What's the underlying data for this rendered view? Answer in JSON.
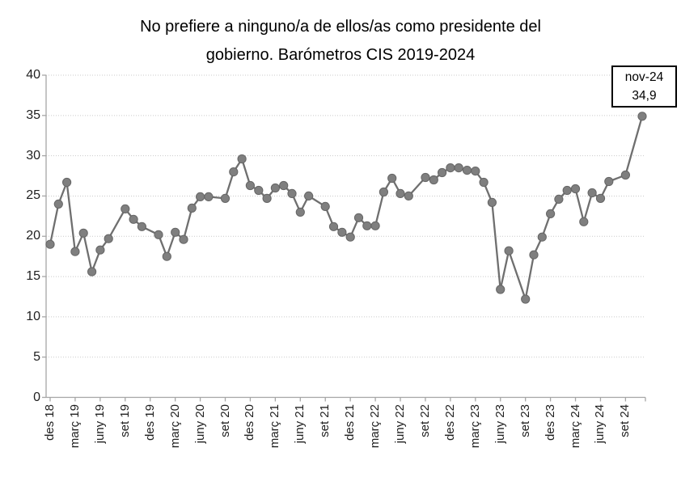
{
  "title": {
    "line1": "No prefiere a ninguno/a de ellos/as como presidente del",
    "line2": "gobierno. Barómetros CIS 2019-2024"
  },
  "annotation": {
    "label": "nov-24",
    "value": "34,9"
  },
  "chart_data": {
    "type": "line",
    "title": "No prefiere a ninguno/a de ellos/as como presidente del gobierno. Barómetros CIS 2019-2024",
    "xlabel": "",
    "ylabel": "",
    "ylim": [
      0,
      40
    ],
    "y_ticks": [
      0,
      5,
      10,
      15,
      20,
      25,
      30,
      35,
      40
    ],
    "grid": "horizontal-dotted",
    "legend": "none",
    "x_unit": "m = months after Dec 2018 (date axis; no survey in Augusts, Dec 2019, Oct 2024)",
    "x_ticks": [
      {
        "m": 0,
        "label": "des 18"
      },
      {
        "m": 3,
        "label": "març 19"
      },
      {
        "m": 6,
        "label": "juny 19"
      },
      {
        "m": 9,
        "label": "set 19"
      },
      {
        "m": 12,
        "label": "des 19"
      },
      {
        "m": 15,
        "label": "març 20"
      },
      {
        "m": 18,
        "label": "juny 20"
      },
      {
        "m": 21,
        "label": "set 20"
      },
      {
        "m": 24,
        "label": "des 20"
      },
      {
        "m": 27,
        "label": "març 21"
      },
      {
        "m": 30,
        "label": "juny 21"
      },
      {
        "m": 33,
        "label": "set 21"
      },
      {
        "m": 36,
        "label": "des 21"
      },
      {
        "m": 39,
        "label": "març 22"
      },
      {
        "m": 42,
        "label": "juny 22"
      },
      {
        "m": 45,
        "label": "set 22"
      },
      {
        "m": 48,
        "label": "des 22"
      },
      {
        "m": 51,
        "label": "març 23"
      },
      {
        "m": 54,
        "label": "juny 23"
      },
      {
        "m": 57,
        "label": "set 23"
      },
      {
        "m": 60,
        "label": "des 23"
      },
      {
        "m": 63,
        "label": "març 24"
      },
      {
        "m": 66,
        "label": "juny 24"
      },
      {
        "m": 69,
        "label": "set 24"
      }
    ],
    "series": [
      {
        "name": "No prefiere a ninguno/a de ellos/as",
        "points": [
          [
            0,
            19.0
          ],
          [
            1,
            24.0
          ],
          [
            2,
            26.7
          ],
          [
            3,
            18.1
          ],
          [
            4,
            20.4
          ],
          [
            5,
            15.6
          ],
          [
            6,
            18.3
          ],
          [
            7,
            19.7
          ],
          [
            9,
            23.4
          ],
          [
            10,
            22.1
          ],
          [
            11,
            21.2
          ],
          [
            13,
            20.2
          ],
          [
            14,
            17.5
          ],
          [
            15,
            20.5
          ],
          [
            16,
            19.6
          ],
          [
            17,
            23.5
          ],
          [
            18,
            24.9
          ],
          [
            19,
            24.9
          ],
          [
            21,
            24.7
          ],
          [
            22,
            28.0
          ],
          [
            23,
            29.6
          ],
          [
            24,
            26.3
          ],
          [
            25,
            25.7
          ],
          [
            26,
            24.7
          ],
          [
            27,
            26.0
          ],
          [
            28,
            26.3
          ],
          [
            29,
            25.3
          ],
          [
            30,
            23.0
          ],
          [
            31,
            25.0
          ],
          [
            33,
            23.7
          ],
          [
            34,
            21.2
          ],
          [
            35,
            20.5
          ],
          [
            36,
            19.9
          ],
          [
            37,
            22.3
          ],
          [
            38,
            21.3
          ],
          [
            39,
            21.3
          ],
          [
            40,
            25.5
          ],
          [
            41,
            27.2
          ],
          [
            42,
            25.3
          ],
          [
            43,
            25.0
          ],
          [
            45,
            27.3
          ],
          [
            46,
            27.0
          ],
          [
            47,
            27.9
          ],
          [
            48,
            28.5
          ],
          [
            49,
            28.5
          ],
          [
            50,
            28.2
          ],
          [
            51,
            28.1
          ],
          [
            52,
            26.7
          ],
          [
            53,
            24.2
          ],
          [
            54,
            13.4
          ],
          [
            55,
            18.2
          ],
          [
            57,
            12.2
          ],
          [
            58,
            17.7
          ],
          [
            59,
            19.9
          ],
          [
            60,
            22.8
          ],
          [
            61,
            24.6
          ],
          [
            62,
            25.7
          ],
          [
            63,
            25.9
          ],
          [
            64,
            21.8
          ],
          [
            65,
            25.4
          ],
          [
            66,
            24.7
          ],
          [
            67,
            26.8
          ],
          [
            69,
            27.6
          ],
          [
            71,
            34.9
          ]
        ]
      }
    ],
    "annotation": {
      "target_m": 71,
      "label": "nov-24",
      "value": "34,9"
    },
    "colors": {
      "line": "#6f6f6f",
      "marker_fill": "#7f7f7f",
      "marker_edge": "#666666",
      "grid": "#c9c9c9",
      "axis": "#a6a6a6",
      "tick_text": "#1f1f1f",
      "title_text": "#000000",
      "annotation_border": "#000000",
      "background": "#ffffff"
    }
  }
}
